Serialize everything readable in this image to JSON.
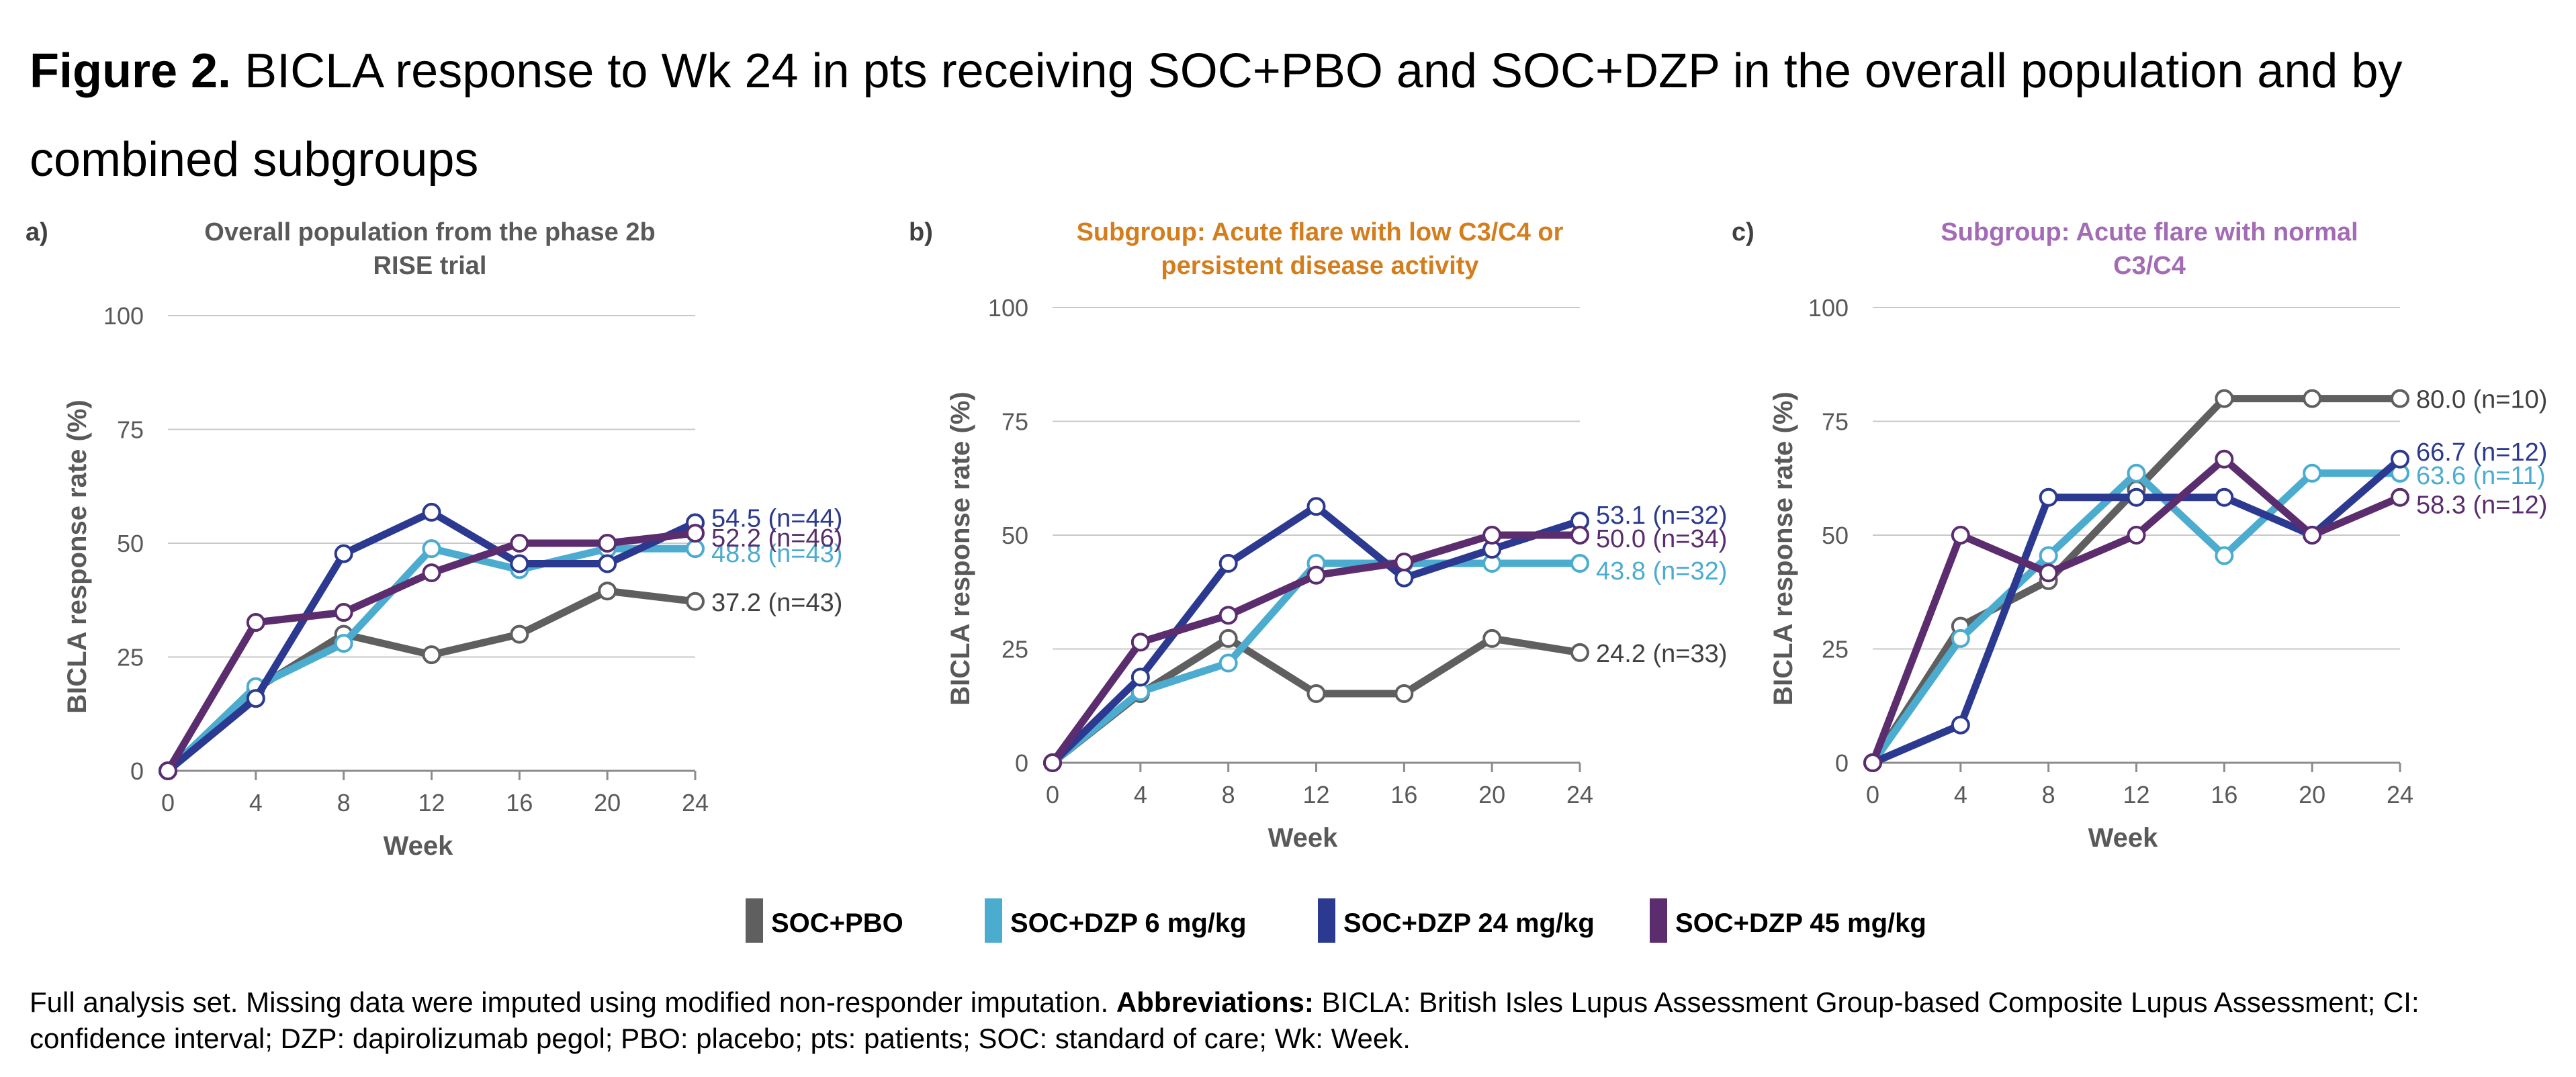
{
  "figure": {
    "label": "Figure 2.",
    "title": "BICLA response to Wk 24 in pts receiving SOC+PBO and SOC+DZP in the overall population and by combined subgroups"
  },
  "colors": {
    "soc_pbo": "#5f5f5f",
    "dzp6": "#4bacd0",
    "dzp24": "#2b3990",
    "dzp45": "#5b2d6e",
    "title_a": "#595959",
    "title_b": "#d47d1c",
    "title_c": "#a36bb5",
    "grid": "#c8c8c8",
    "axis_text": "#595959"
  },
  "legend": [
    {
      "key": "soc_pbo",
      "label": "SOC+PBO"
    },
    {
      "key": "dzp6",
      "label": "SOC+DZP 6 mg/kg"
    },
    {
      "key": "dzp24",
      "label": "SOC+DZP 24 mg/kg"
    },
    {
      "key": "dzp45",
      "label": "SOC+DZP 45 mg/kg"
    }
  ],
  "chart_data": [
    {
      "type": "line",
      "panel_label": "a)",
      "title": "Overall population from the phase 2b RISE trial",
      "title_lines": [
        "Overall population from the phase 2b",
        "RISE trial"
      ],
      "title_color_key": "title_a",
      "xlabel": "Week",
      "ylabel": "BICLA response rate (%)",
      "x": [
        0,
        4,
        8,
        12,
        16,
        20,
        24
      ],
      "xlim": [
        0,
        24
      ],
      "ylim": [
        0,
        100
      ],
      "yticks": [
        0,
        25,
        50,
        75,
        100
      ],
      "grid": true,
      "series": [
        {
          "key": "soc_pbo",
          "values": [
            0,
            18,
            30,
            25.5,
            30,
            39.5,
            37.2
          ],
          "end_label": "37.2 (n=43)"
        },
        {
          "key": "dzp6",
          "values": [
            0,
            18.5,
            28,
            48.8,
            44.2,
            48.8,
            48.8
          ],
          "end_label": "48.8 (n=43)"
        },
        {
          "key": "dzp24",
          "values": [
            0,
            15.9,
            47.7,
            56.8,
            45.5,
            45.5,
            54.5
          ],
          "end_label": "54.5 (n=44)"
        },
        {
          "key": "dzp45",
          "values": [
            0,
            32.6,
            34.8,
            43.5,
            50,
            50,
            52.2
          ],
          "end_label": "52.2 (n=46)"
        }
      ]
    },
    {
      "type": "line",
      "panel_label": "b)",
      "title": "Subgroup: Acute flare with low C3/C4 or persistent disease activity",
      "title_lines": [
        "Subgroup: Acute flare with low C3/C4 or",
        "persistent disease activity"
      ],
      "title_color_key": "title_b",
      "xlabel": "Week",
      "ylabel": "BICLA response rate (%)",
      "x": [
        0,
        4,
        8,
        12,
        16,
        20,
        24
      ],
      "xlim": [
        0,
        24
      ],
      "ylim": [
        0,
        100
      ],
      "yticks": [
        0,
        25,
        50,
        75,
        100
      ],
      "grid": true,
      "series": [
        {
          "key": "soc_pbo",
          "values": [
            0,
            15.2,
            27.3,
            15.2,
            15.2,
            27.3,
            24.2
          ],
          "end_label": "24.2 (n=33)"
        },
        {
          "key": "dzp6",
          "values": [
            0,
            15.6,
            21.9,
            43.8,
            43.8,
            43.8,
            43.8
          ],
          "end_label": "43.8 (n=32)"
        },
        {
          "key": "dzp24",
          "values": [
            0,
            18.8,
            43.8,
            56.3,
            40.6,
            46.9,
            53.1
          ],
          "end_label": "53.1 (n=32)"
        },
        {
          "key": "dzp45",
          "values": [
            0,
            26.5,
            32.4,
            41.2,
            44.1,
            50,
            50
          ],
          "end_label": "50.0 (n=34)"
        }
      ]
    },
    {
      "type": "line",
      "panel_label": "c)",
      "title": "Subgroup: Acute flare with normal C3/C4",
      "title_lines": [
        "Subgroup: Acute flare with normal",
        "C3/C4"
      ],
      "title_color_key": "title_c",
      "xlabel": "Week",
      "ylabel": "BICLA response rate (%)",
      "x": [
        0,
        4,
        8,
        12,
        16,
        20,
        24
      ],
      "xlim": [
        0,
        24
      ],
      "ylim": [
        0,
        100
      ],
      "yticks": [
        0,
        25,
        50,
        75,
        100
      ],
      "grid": true,
      "series": [
        {
          "key": "soc_pbo",
          "values": [
            0,
            30,
            40,
            60,
            80,
            80,
            80
          ],
          "end_label": "80.0 (n=10)"
        },
        {
          "key": "dzp6",
          "values": [
            0,
            27.3,
            45.5,
            63.6,
            45.5,
            63.6,
            63.6
          ],
          "end_label": "63.6 (n=11)"
        },
        {
          "key": "dzp24",
          "values": [
            0,
            8.3,
            58.3,
            58.3,
            58.3,
            50,
            66.7
          ],
          "end_label": "66.7 (n=12)"
        },
        {
          "key": "dzp45",
          "values": [
            0,
            50,
            41.7,
            50,
            66.7,
            50,
            58.3
          ],
          "end_label": "58.3 (n=12)"
        }
      ]
    }
  ],
  "footnote": {
    "text1": "Full analysis set. Missing data were imputed using modified non-responder imputation.",
    "abbrev_label": "Abbreviations:",
    "text2": "BICLA: British Isles Lupus Assessment Group-based Composite Lupus Assessment; CI: confidence interval; DZP: dapirolizumab pegol; PBO: placebo; pts: patients; SOC: standard of care; Wk: Week."
  }
}
